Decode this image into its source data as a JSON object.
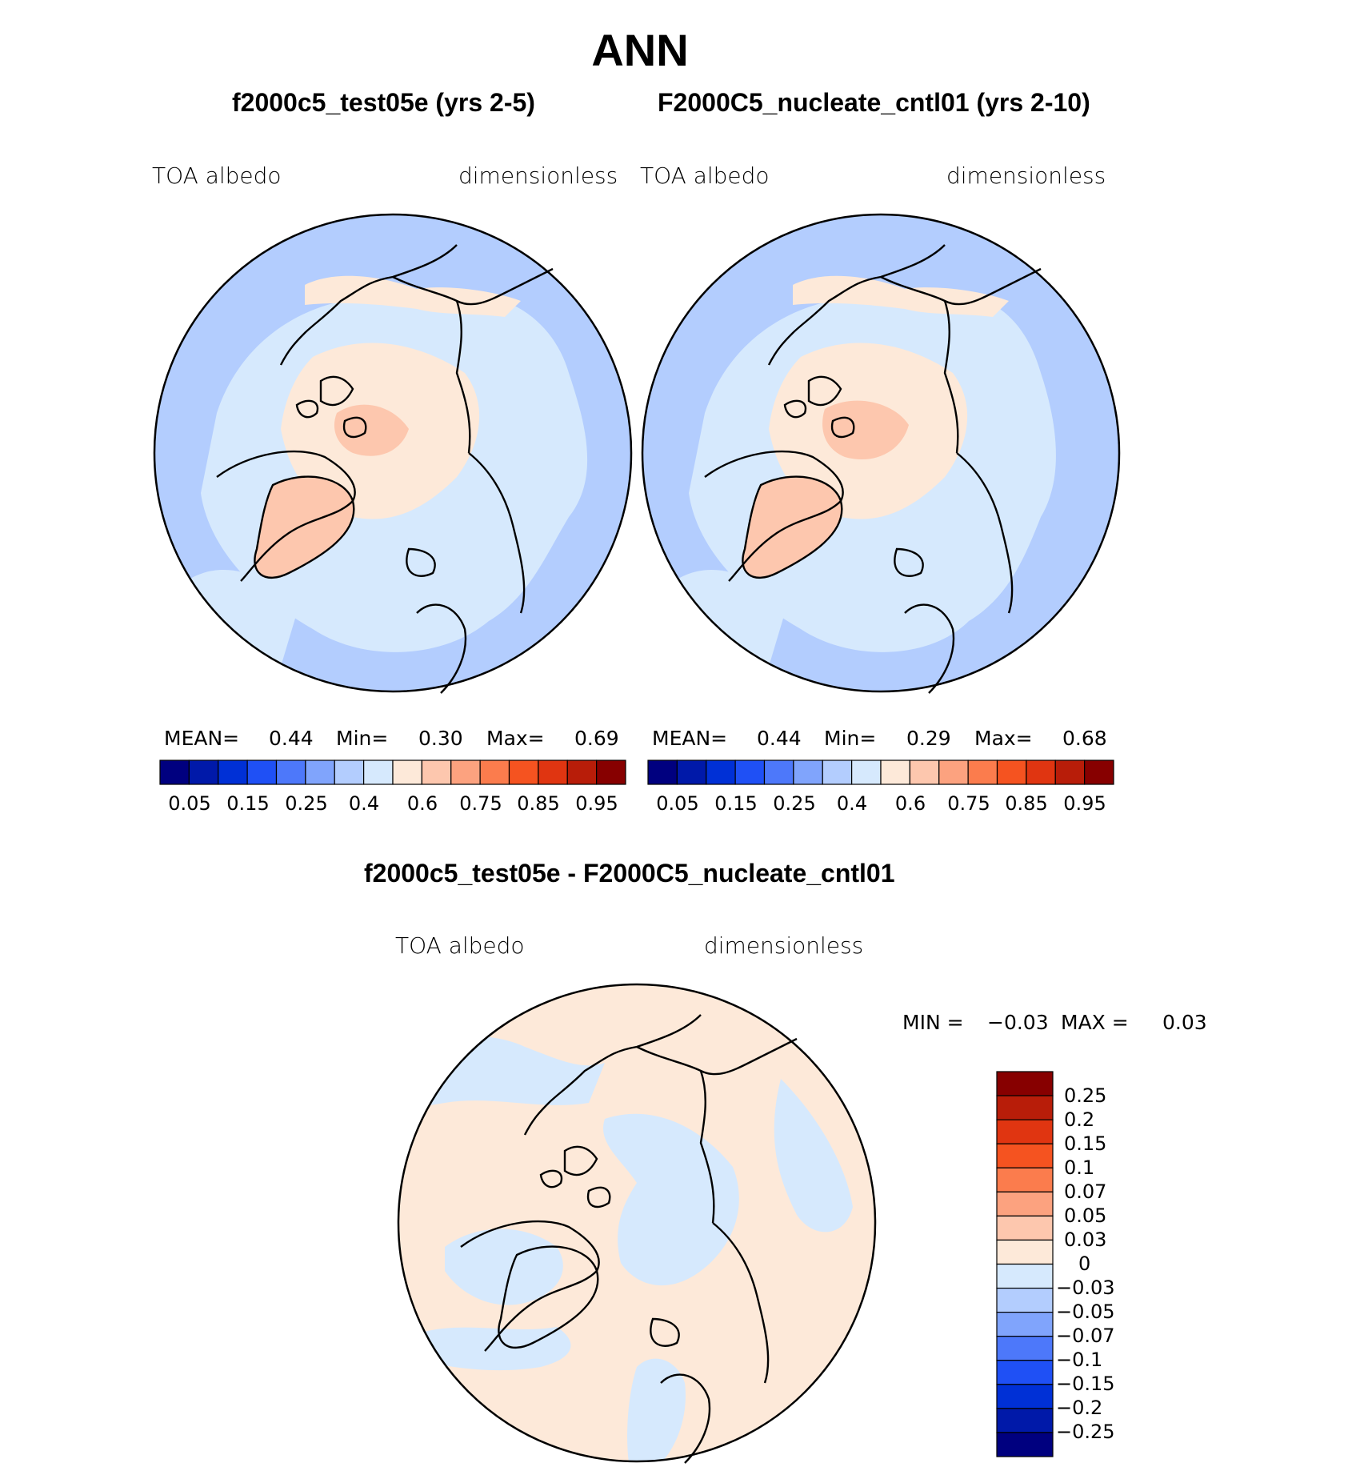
{
  "title": "ANN",
  "panels": [
    {
      "case_title": "f2000c5_test05e (yrs 2-5)",
      "variable": "TOA  albedo",
      "units": "dimensionless",
      "mean_label": "MEAN=",
      "mean": "0.44",
      "min_label": "Min=",
      "min": "0.30",
      "max_label": "Max=",
      "max": "0.69"
    },
    {
      "case_title": "F2000C5_nucleate_cntl01 (yrs 2-10)",
      "variable": "TOA  albedo",
      "units": "dimensionless",
      "mean_label": "MEAN=",
      "mean": "0.44",
      "min_label": "Min=",
      "min": "0.29",
      "max_label": "Max=",
      "max": "0.68"
    }
  ],
  "colorbar": {
    "tick_labels": [
      "0.05",
      "0.15",
      "0.25",
      "0.4",
      "0.6",
      "0.75",
      "0.85",
      "0.95"
    ],
    "colors": [
      "#00007f",
      "#0019a9",
      "#0030d6",
      "#1f50f5",
      "#4d78fa",
      "#80a4fc",
      "#b3cdfe",
      "#d6e9fd",
      "#fde9d9",
      "#fdc7ae",
      "#fca27f",
      "#fb7c4d",
      "#f55320",
      "#e03511",
      "#b81d09",
      "#870000"
    ]
  },
  "diff": {
    "title": "f2000c5_test05e - F2000C5_nucleate_cntl01",
    "variable": "TOA  albedo",
    "units": "dimensionless",
    "min_label": "MIN =",
    "min": "−0.03",
    "max_label": "MAX =",
    "max": "0.03",
    "colorbar_labels": [
      "0.25",
      "0.2",
      "0.15",
      "0.1",
      "0.07",
      "0.05",
      "0.03",
      "0",
      "−0.03",
      "−0.05",
      "−0.07",
      "−0.1",
      "−0.15",
      "−0.2",
      "−0.25"
    ],
    "colorbar_colors": [
      "#870000",
      "#b81d09",
      "#e03511",
      "#f55320",
      "#fb7c4d",
      "#fca27f",
      "#fdc7ae",
      "#fde9d9",
      "#d6e9fd",
      "#b3cdfe",
      "#80a4fc",
      "#4d78fa",
      "#1f50f5",
      "#0030d6",
      "#0019a9",
      "#00007f"
    ]
  },
  "map_colors": {
    "ocean_mid": "#b3cdfe",
    "ocean_light": "#d6e9fd",
    "land_high": "#fde9d9",
    "ice_sheet": "#fdc7ae",
    "diff_positive": "#fde9d9",
    "diff_negative": "#d6e9fd"
  },
  "projection": "north-polar-stereographic"
}
